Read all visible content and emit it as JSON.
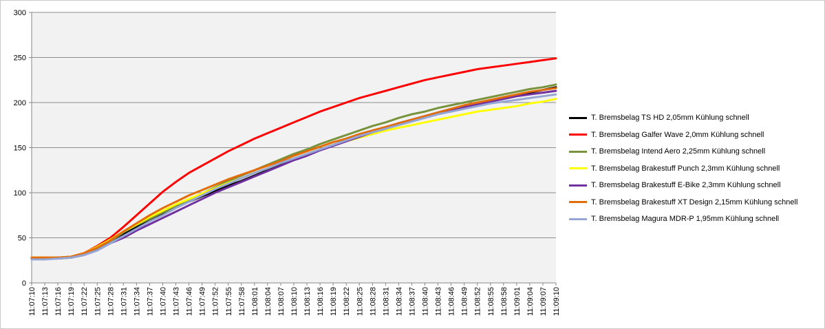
{
  "chart_data": {
    "type": "line",
    "title": "",
    "xlabel": "",
    "ylabel": "",
    "ylim": [
      0,
      300
    ],
    "yticks": [
      0,
      50,
      100,
      150,
      200,
      250,
      300
    ],
    "grid": true,
    "legend_position": "right",
    "plot_background": "#f2f2f2",
    "x": [
      "11:07:10",
      "11:07:13",
      "11:07:16",
      "11:07:19",
      "11:07:22",
      "11:07:25",
      "11:07:28",
      "11:07:31",
      "11:07:34",
      "11:07:37",
      "11:07:40",
      "11:07:43",
      "11:07:46",
      "11:07:49",
      "11:07:52",
      "11:07:55",
      "11:07:58",
      "11:08:01",
      "11:08:04",
      "11:08:07",
      "11:08:10",
      "11:08:13",
      "11:08:16",
      "11:08:19",
      "11:08:22",
      "11:08:25",
      "11:08:28",
      "11:08:31",
      "11:08:34",
      "11:08:37",
      "11:08:40",
      "11:08:43",
      "11:08:46",
      "11:08:49",
      "11:08:52",
      "11:08:55",
      "11:08:58",
      "11:09:01",
      "11:09:04",
      "11:09:07",
      "11:09:10"
    ],
    "series": [
      {
        "name": "T. Bremsbelag TS HD 2,05mm Kühlung schnell",
        "color": "#000000",
        "values": [
          27,
          27,
          27,
          28,
          31,
          37,
          45,
          54,
          62,
          69,
          77,
          84,
          90,
          96,
          102,
          108,
          113,
          119,
          125,
          131,
          137,
          142,
          148,
          153,
          158,
          163,
          168,
          172,
          177,
          181,
          185,
          189,
          193,
          196,
          199,
          202,
          205,
          208,
          211,
          214,
          217
        ]
      },
      {
        "name": "T. Bremsbelag Galfer Wave 2,0mm Kühlung schnell",
        "color": "#ff0000",
        "values": [
          28,
          28,
          28,
          29,
          33,
          41,
          50,
          62,
          75,
          88,
          101,
          112,
          122,
          130,
          138,
          146,
          153,
          160,
          166,
          172,
          178,
          184,
          190,
          195,
          200,
          205,
          209,
          213,
          217,
          221,
          225,
          228,
          231,
          234,
          237,
          239,
          241,
          243,
          245,
          247,
          249
        ]
      },
      {
        "name": "T. Bremsbelag Intend Aero 2,25mm Kühlung schnell",
        "color": "#77933c",
        "values": [
          27,
          27,
          28,
          29,
          32,
          38,
          46,
          56,
          64,
          71,
          78,
          85,
          92,
          99,
          106,
          113,
          119,
          125,
          131,
          137,
          143,
          148,
          154,
          159,
          164,
          169,
          174,
          178,
          183,
          187,
          190,
          194,
          197,
          200,
          203,
          206,
          209,
          212,
          215,
          217,
          220
        ]
      },
      {
        "name": "T. Bremsbelag Brakestuff Punch 2,3mm Kühlung schnell",
        "color": "#ffff00",
        "values": [
          28,
          28,
          28,
          29,
          33,
          40,
          48,
          57,
          65,
          73,
          80,
          87,
          93,
          99,
          105,
          111,
          116,
          122,
          127,
          133,
          138,
          143,
          148,
          153,
          157,
          161,
          165,
          169,
          172,
          175,
          178,
          181,
          184,
          187,
          190,
          192,
          194,
          196,
          199,
          201,
          204
        ]
      },
      {
        "name": "T. Bremsbelag Brakestuff E-Bike 2,3mm Kühlung schnell",
        "color": "#7030a0",
        "values": [
          27,
          27,
          28,
          28,
          31,
          36,
          44,
          50,
          58,
          65,
          72,
          79,
          86,
          93,
          100,
          106,
          112,
          118,
          124,
          130,
          136,
          141,
          147,
          152,
          157,
          162,
          167,
          171,
          176,
          180,
          184,
          188,
          192,
          195,
          198,
          201,
          204,
          207,
          209,
          211,
          213
        ]
      },
      {
        "name": "T. Bremsbelag Brakestuff XT Design 2,15mm Kühlung schnell",
        "color": "#e36c09",
        "values": [
          28,
          28,
          28,
          29,
          33,
          39,
          47,
          57,
          66,
          75,
          83,
          90,
          97,
          103,
          109,
          115,
          120,
          125,
          130,
          135,
          141,
          146,
          151,
          156,
          160,
          165,
          169,
          173,
          177,
          181,
          185,
          189,
          193,
          197,
          200,
          203,
          206,
          209,
          212,
          214,
          216
        ]
      },
      {
        "name": "T. Bremsbelag Magura MDR-P 1,95mm Kühlung schnell",
        "color": "#95a6d4",
        "values": [
          26,
          26,
          27,
          28,
          31,
          36,
          44,
          52,
          60,
          68,
          75,
          83,
          90,
          97,
          104,
          110,
          116,
          122,
          127,
          133,
          138,
          143,
          148,
          153,
          158,
          163,
          167,
          171,
          175,
          179,
          183,
          187,
          190,
          193,
          196,
          199,
          201,
          203,
          205,
          207,
          209
        ]
      }
    ]
  }
}
